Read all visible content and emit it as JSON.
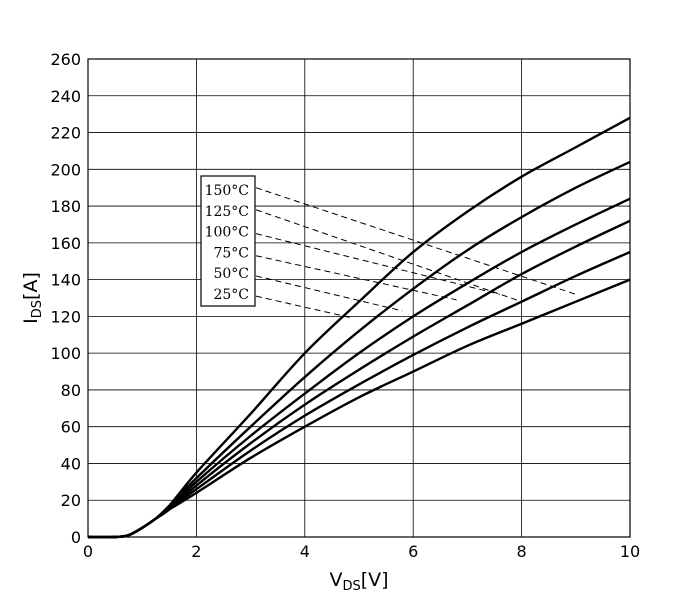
{
  "chart_data": {
    "type": "line",
    "title": "",
    "xlabel_main": "V",
    "xlabel_sub": "DS",
    "xlabel_unit": "[V]",
    "ylabel_main": "I",
    "ylabel_sub": "DS",
    "ylabel_unit": "[A]",
    "xlim": [
      0,
      10
    ],
    "ylim": [
      0,
      260
    ],
    "xticks": [
      0,
      2,
      4,
      6,
      8,
      10
    ],
    "yticks": [
      0,
      20,
      40,
      60,
      80,
      100,
      120,
      140,
      160,
      180,
      200,
      220,
      240,
      260
    ],
    "grid": true,
    "legend_location": "upper-left inside plot, with dashed leader lines to curves",
    "series": [
      {
        "name": "150°C",
        "x": [
          0,
          0.5,
          0.75,
          1.0,
          1.25,
          1.5,
          2,
          3,
          4,
          5,
          6,
          7,
          8,
          9,
          10
        ],
        "y": [
          0,
          0,
          1,
          5,
          10,
          17,
          35,
          67,
          100,
          128,
          155,
          177,
          196,
          212,
          228
        ],
        "label_anchor": [
          3.1,
          190
        ],
        "curve_anchor": [
          9.0,
          132
        ]
      },
      {
        "name": "125°C",
        "x": [
          0,
          0.5,
          0.75,
          1.0,
          1.25,
          1.5,
          2,
          3,
          4,
          5,
          6,
          7,
          8,
          9,
          10
        ],
        "y": [
          0,
          0,
          1,
          5,
          10,
          17,
          32,
          60,
          87,
          112,
          135,
          156,
          174,
          190,
          204
        ],
        "label_anchor": [
          3.1,
          178
        ],
        "curve_anchor": [
          8.0,
          128
        ]
      },
      {
        "name": "100°C",
        "x": [
          0,
          0.5,
          0.75,
          1.0,
          1.25,
          1.5,
          2,
          3,
          4,
          5,
          6,
          7,
          8,
          9,
          10
        ],
        "y": [
          0,
          0,
          1,
          5,
          10,
          16,
          30,
          55,
          78,
          100,
          120,
          138,
          155,
          170,
          184
        ],
        "label_anchor": [
          3.1,
          165
        ],
        "curve_anchor": [
          7.6,
          132
        ]
      },
      {
        "name": "75°C",
        "x": [
          0,
          0.5,
          0.75,
          1.0,
          1.25,
          1.5,
          2,
          3,
          4,
          5,
          6,
          7,
          8,
          9,
          10
        ],
        "y": [
          0,
          0,
          1,
          5,
          10,
          15,
          28,
          51,
          72,
          91,
          109,
          126,
          143,
          158,
          172
        ],
        "label_anchor": [
          3.1,
          153
        ],
        "curve_anchor": [
          6.8,
          129
        ]
      },
      {
        "name": "50°C",
        "x": [
          0,
          0.5,
          0.75,
          1.0,
          1.25,
          1.5,
          2,
          3,
          4,
          5,
          6,
          7,
          8,
          9,
          10
        ],
        "y": [
          0,
          0,
          1,
          5,
          10,
          15,
          26,
          47,
          66,
          83,
          99,
          114,
          128,
          142,
          155
        ],
        "label_anchor": [
          3.1,
          142
        ],
        "curve_anchor": [
          5.8,
          123
        ]
      },
      {
        "name": "25°C",
        "x": [
          0,
          0.5,
          0.75,
          1.0,
          1.25,
          1.5,
          2,
          3,
          4,
          5,
          6,
          7,
          8,
          9,
          10
        ],
        "y": [
          0,
          0,
          1,
          5,
          10,
          15,
          24,
          43,
          60,
          76,
          90,
          104,
          116,
          128,
          140
        ],
        "label_anchor": [
          3.1,
          131
        ],
        "curve_anchor": [
          4.9,
          119
        ]
      }
    ]
  }
}
